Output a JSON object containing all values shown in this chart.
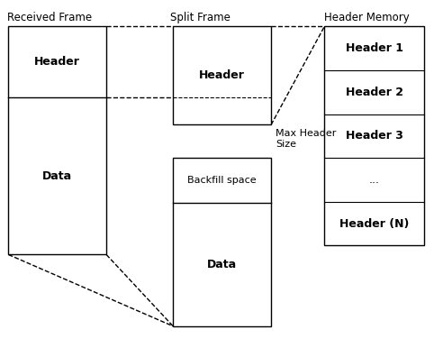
{
  "title_received": "Received Frame",
  "title_split": "Split Frame",
  "title_header_mem": "Header Memory",
  "bg_color": "#ffffff",
  "box_edge_color": "#000000",
  "dashed_color": "#000000",
  "text_color": "#000000",
  "font_size_title": 8.5,
  "font_size_label": 9,
  "font_size_small": 8
}
